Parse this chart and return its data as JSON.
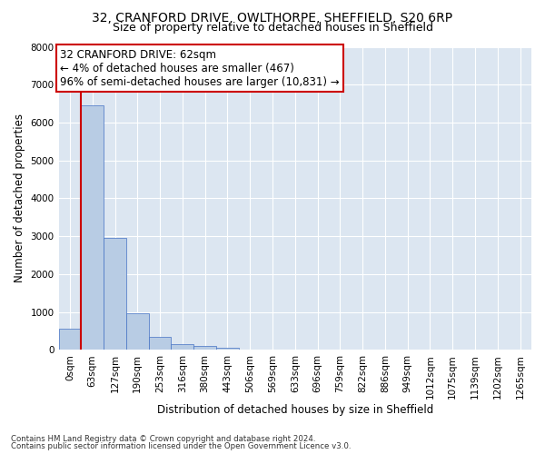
{
  "title_line1": "32, CRANFORD DRIVE, OWLTHORPE, SHEFFIELD, S20 6RP",
  "title_line2": "Size of property relative to detached houses in Sheffield",
  "xlabel": "Distribution of detached houses by size in Sheffield",
  "ylabel": "Number of detached properties",
  "footer_line1": "Contains HM Land Registry data © Crown copyright and database right 2024.",
  "footer_line2": "Contains public sector information licensed under the Open Government Licence v3.0.",
  "bar_labels": [
    "0sqm",
    "63sqm",
    "127sqm",
    "190sqm",
    "253sqm",
    "316sqm",
    "380sqm",
    "443sqm",
    "506sqm",
    "569sqm",
    "633sqm",
    "696sqm",
    "759sqm",
    "822sqm",
    "886sqm",
    "949sqm",
    "1012sqm",
    "1075sqm",
    "1139sqm",
    "1202sqm",
    "1265sqm"
  ],
  "bar_values": [
    550,
    6450,
    2950,
    975,
    340,
    155,
    100,
    65,
    10,
    5,
    3,
    2,
    1,
    1,
    0,
    0,
    0,
    0,
    0,
    0,
    0
  ],
  "bar_color": "#b8cce4",
  "bar_edge_color": "#4472c4",
  "bar_width": 1.0,
  "annotation_line1": "32 CRANFORD DRIVE: 62sqm",
  "annotation_line2": "← 4% of detached houses are smaller (467)",
  "annotation_line3": "96% of semi-detached houses are larger (10,831) →",
  "annotation_box_color": "#ffffff",
  "annotation_box_edge_color": "#cc0000",
  "vline_color": "#cc0000",
  "vline_x_bar_index": 1,
  "ylim": [
    0,
    8000
  ],
  "yticks": [
    0,
    1000,
    2000,
    3000,
    4000,
    5000,
    6000,
    7000,
    8000
  ],
  "axes_bg_color": "#dce6f1",
  "grid_color": "#ffffff",
  "title_fontsize": 10,
  "subtitle_fontsize": 9,
  "axis_label_fontsize": 8.5,
  "tick_fontsize": 7.5,
  "annotation_fontsize": 8.5
}
